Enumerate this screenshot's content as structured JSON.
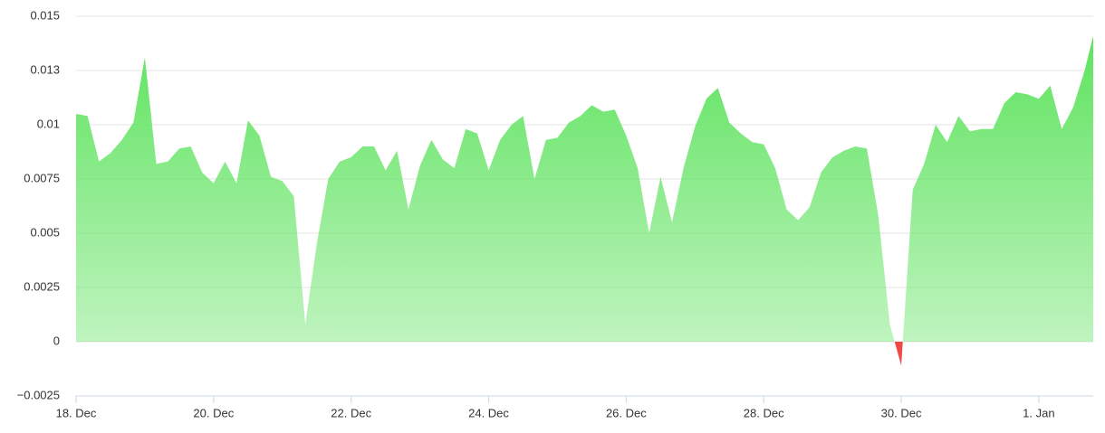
{
  "chart_data": {
    "type": "area",
    "x": [
      0,
      4,
      8,
      12,
      16,
      20,
      24,
      28,
      32,
      36,
      40,
      44,
      48,
      52,
      56,
      60,
      64,
      68,
      72,
      76,
      80,
      84,
      88,
      92,
      96,
      100,
      104,
      108,
      112,
      116,
      120,
      124,
      128,
      132,
      136,
      140,
      144,
      148,
      152,
      156,
      160,
      164,
      168,
      172,
      176,
      180,
      184,
      188,
      192,
      196,
      200,
      204,
      208,
      212,
      216,
      220,
      224,
      228,
      232,
      236,
      240,
      244,
      248,
      252,
      256,
      260,
      264,
      268,
      272,
      276,
      280,
      284,
      288,
      292,
      296,
      300,
      304,
      308,
      312,
      316,
      320,
      324,
      328,
      332,
      336,
      340,
      344,
      348,
      352,
      355
    ],
    "values": [
      0.0105,
      0.0104,
      0.0083,
      0.0087,
      0.0093,
      0.0101,
      0.0131,
      0.0082,
      0.0083,
      0.0089,
      0.009,
      0.0078,
      0.0073,
      0.0083,
      0.0073,
      0.0102,
      0.0095,
      0.0076,
      0.0074,
      0.0067,
      0.0008,
      0.0045,
      0.0075,
      0.0083,
      0.0085,
      0.009,
      0.009,
      0.0079,
      0.0088,
      0.0061,
      0.0081,
      0.0093,
      0.0084,
      0.008,
      0.0098,
      0.0096,
      0.0079,
      0.0093,
      0.01,
      0.0104,
      0.0075,
      0.0093,
      0.0094,
      0.0101,
      0.0104,
      0.0109,
      0.0106,
      0.0107,
      0.0095,
      0.008,
      0.005,
      0.0076,
      0.0055,
      0.008,
      0.0099,
      0.0112,
      0.0117,
      0.0101,
      0.0096,
      0.0092,
      0.0091,
      0.008,
      0.0061,
      0.0056,
      0.0062,
      0.0078,
      0.0085,
      0.0088,
      0.009,
      0.0089,
      0.0058,
      0.0008,
      -0.0011,
      0.007,
      0.0082,
      0.01,
      0.0092,
      0.0104,
      0.0097,
      0.0098,
      0.0098,
      0.011,
      0.0115,
      0.0114,
      0.0112,
      0.0118,
      0.0098,
      0.0108,
      0.0125,
      0.0141
    ],
    "positive_color": "#5ee35e",
    "negative_color": "#ef4a4a",
    "xlim": [
      0,
      355
    ],
    "xticks": [
      {
        "value": 0,
        "label": "18. Dec"
      },
      {
        "value": 48,
        "label": "20. Dec"
      },
      {
        "value": 96,
        "label": "22. Dec"
      },
      {
        "value": 144,
        "label": "24. Dec"
      },
      {
        "value": 192,
        "label": "26. Dec"
      },
      {
        "value": 240,
        "label": "28. Dec"
      },
      {
        "value": 288,
        "label": "30. Dec"
      },
      {
        "value": 336,
        "label": "1. Jan"
      }
    ],
    "ylim": [
      -0.0025,
      0.015
    ],
    "yticks": [
      {
        "value": -0.0025,
        "label": "−0.0025"
      },
      0,
      0.0025,
      0.005,
      0.0075,
      0.01,
      {
        "value": 0.0125,
        "label": "0.013"
      },
      0.015
    ],
    "grid": true
  }
}
